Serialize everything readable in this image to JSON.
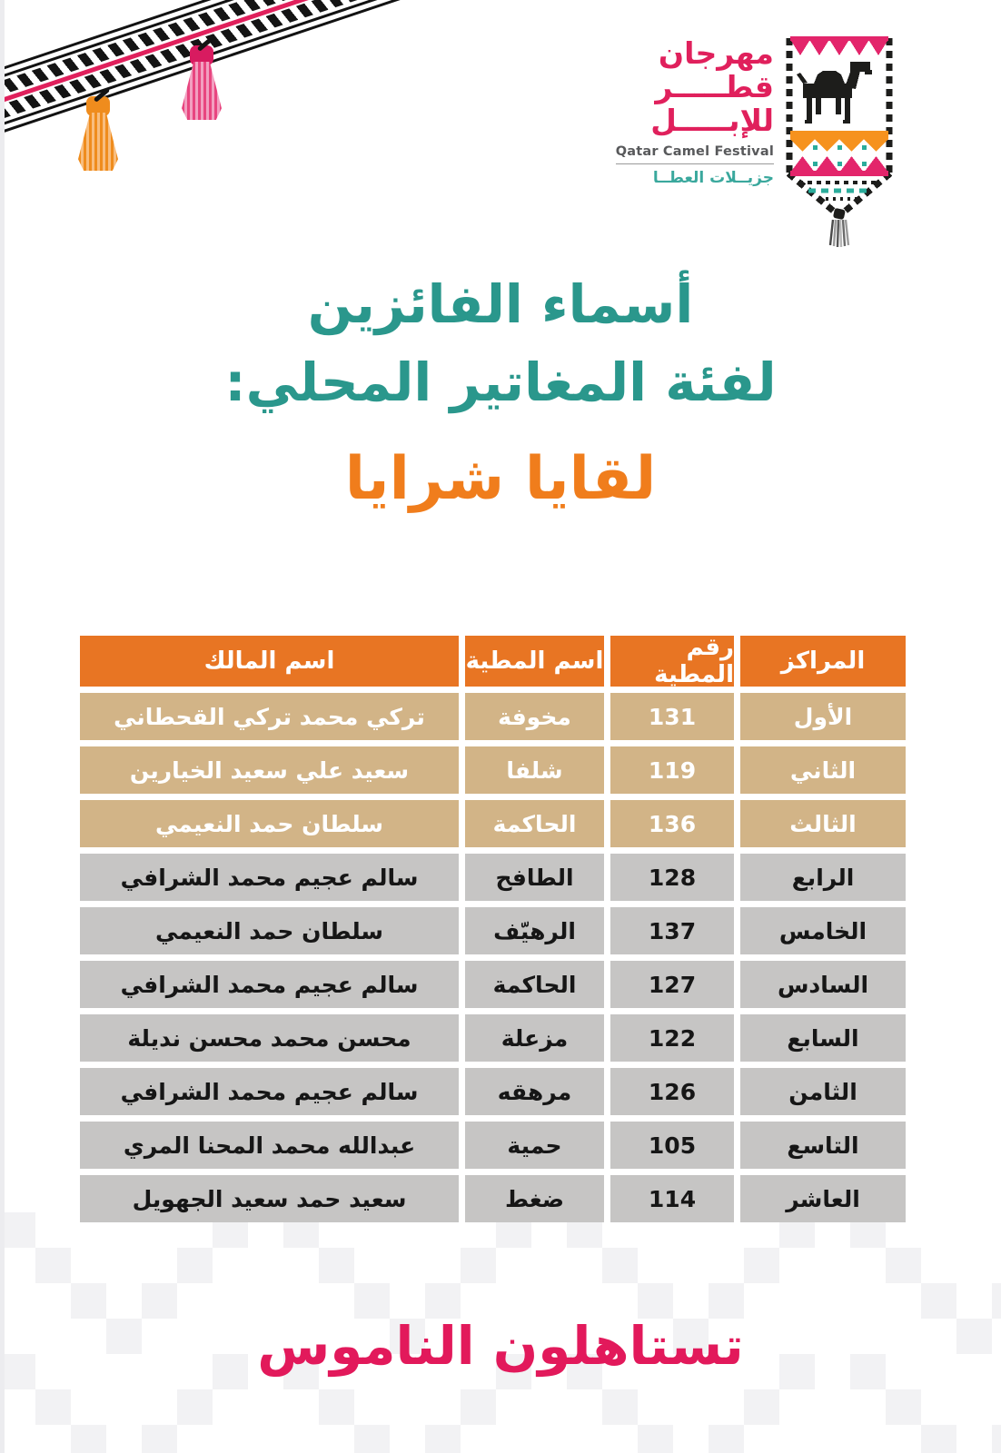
{
  "logo": {
    "name_lines_ar": [
      "مهرجان",
      "قطـــــر",
      "للإبـــــل"
    ],
    "name_en": "Qatar Camel Festival",
    "tagline_ar": "جزيــلات العطــا",
    "emblem_icon": "camel-banner-icon"
  },
  "title": {
    "line1": "أسماء الفائزين",
    "line2": "لفئة المغاتير المحلي:"
  },
  "subtitle": "لقايا شرايا",
  "table": {
    "headers": [
      "المراكز",
      "رقم المطية",
      "اسم المطية",
      "اسم المالك"
    ],
    "rows": [
      {
        "rank": "الأول",
        "number": "131",
        "camel": "مخوفة",
        "owner": "تركي محمد تركي القحطاني",
        "highlight": true
      },
      {
        "rank": "الثاني",
        "number": "119",
        "camel": "شلفا",
        "owner": "سعيد علي سعيد الخيارين",
        "highlight": true
      },
      {
        "rank": "الثالث",
        "number": "136",
        "camel": "الحاكمة",
        "owner": "سلطان حمد النعيمي",
        "highlight": true
      },
      {
        "rank": "الرابع",
        "number": "128",
        "camel": "الطافح",
        "owner": "سالم عجيم محمد الشرافي",
        "highlight": false
      },
      {
        "rank": "الخامس",
        "number": "137",
        "camel": "الرهيّف",
        "owner": "سلطان حمد النعيمي",
        "highlight": false
      },
      {
        "rank": "السادس",
        "number": "127",
        "camel": "الحاكمة",
        "owner": "سالم عجيم محمد الشرافي",
        "highlight": false
      },
      {
        "rank": "السابع",
        "number": "122",
        "camel": "مزعلة",
        "owner": "محسن محمد محسن نديلة",
        "highlight": false
      },
      {
        "rank": "الثامن",
        "number": "126",
        "camel": "مرهقه",
        "owner": "سالم عجيم محمد الشرافي",
        "highlight": false
      },
      {
        "rank": "التاسع",
        "number": "105",
        "camel": "حمية",
        "owner": "عبدالله محمد المحنا المري",
        "highlight": false
      },
      {
        "rank": "العاشر",
        "number": "114",
        "camel": "ضغط",
        "owner": "سعيد حمد سعيد الجهويل",
        "highlight": false
      }
    ]
  },
  "footer": {
    "slogan": "تستاهلون الناموس"
  },
  "colors": {
    "teal_title": "#2a978c",
    "orange_subtitle": "#f07d1c",
    "orange_header": "#e87523",
    "tan_row": "#d2b487",
    "gray_row": "#c6c5c4",
    "pink_brand": "#e0205c",
    "pink_slogan": "#e2195b",
    "teal_logo": "#3aa89d",
    "camel_black": "#1d1d1b",
    "band_orange_tassel": "#ef8c1d",
    "band_pink_tassel": "#e8457f"
  }
}
